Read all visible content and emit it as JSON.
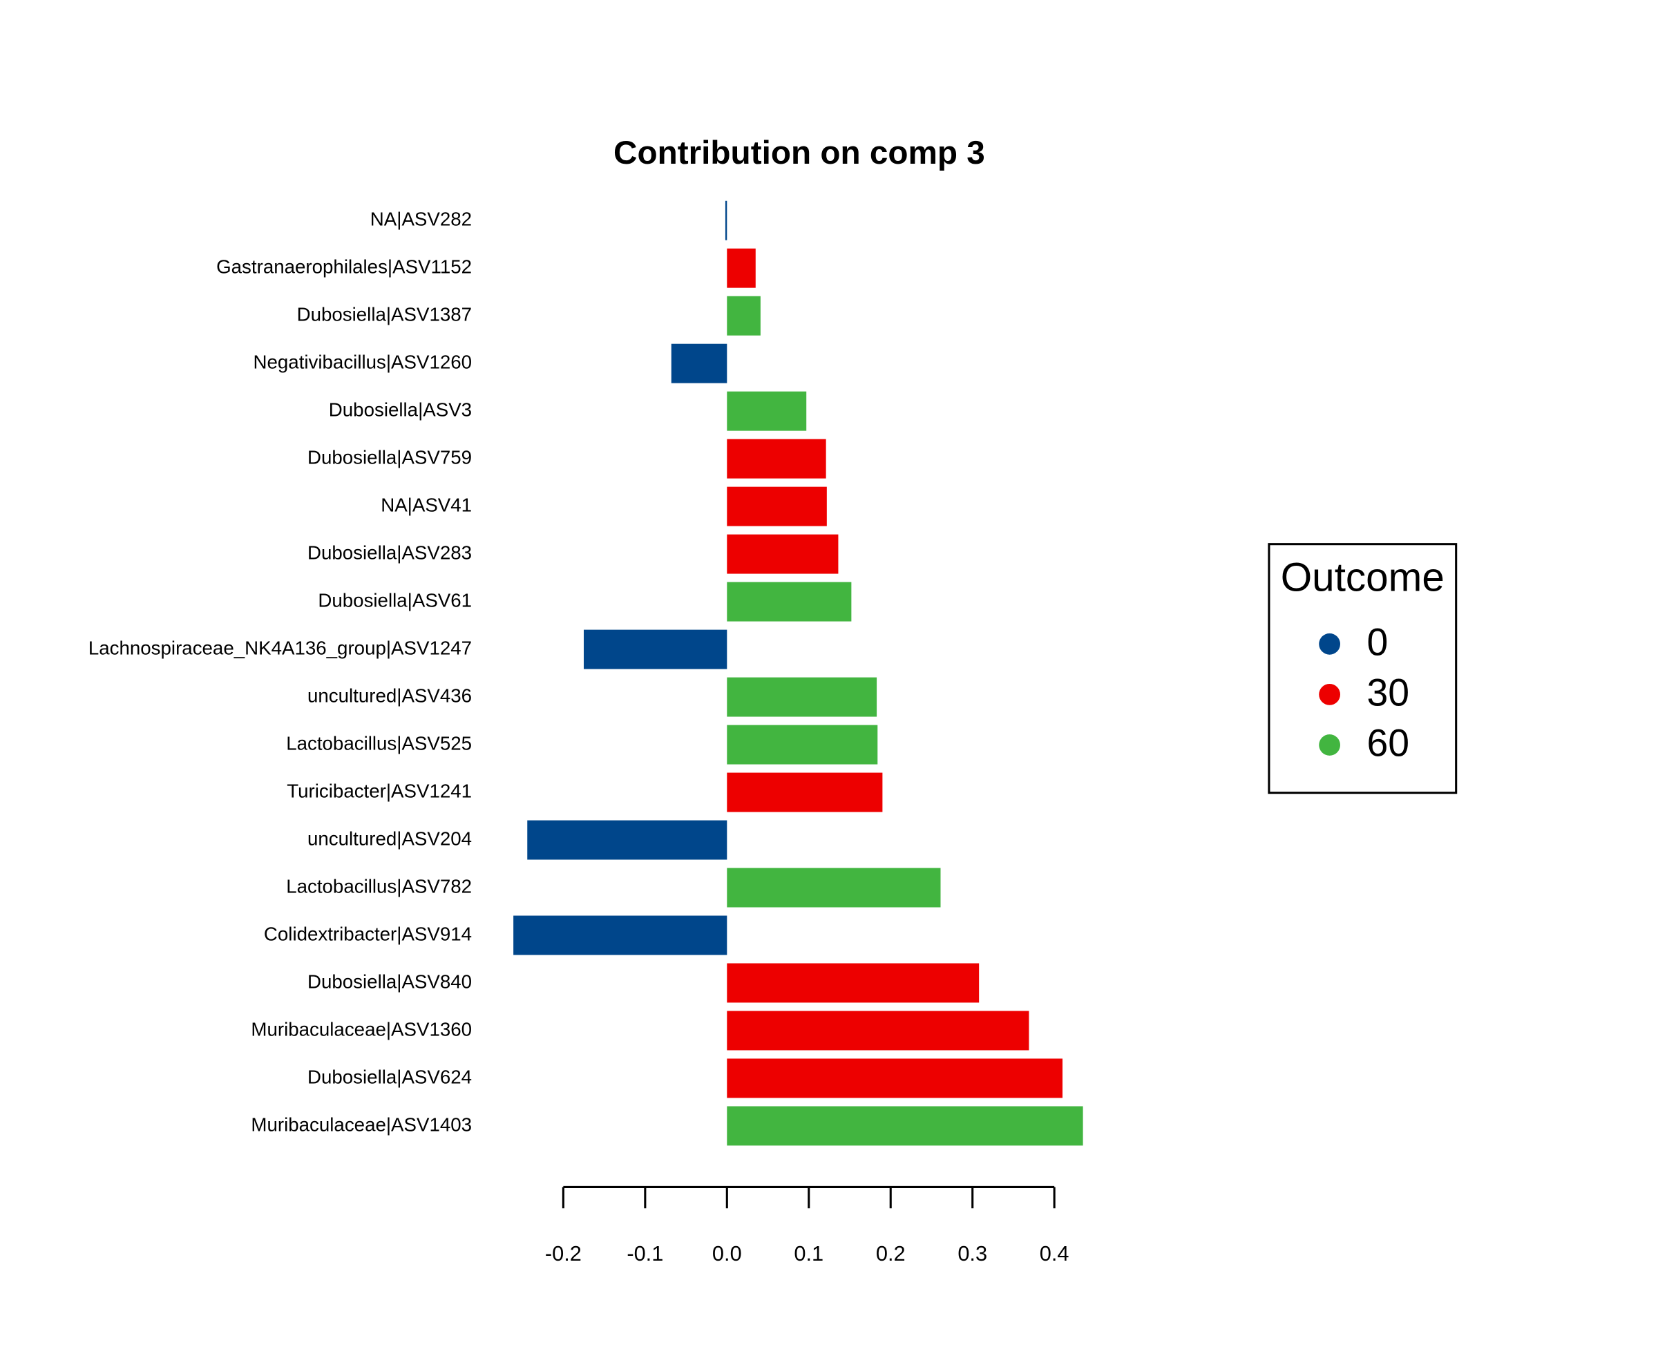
{
  "chart_data": {
    "type": "barh",
    "title": "Contribution on comp 3",
    "categories": [
      "NA|ASV282",
      "Gastranaerophilales|ASV1152",
      "Dubosiella|ASV1387",
      "Negativibacillus|ASV1260",
      "Dubosiella|ASV3",
      "Dubosiella|ASV759",
      "NA|ASV41",
      "Dubosiella|ASV283",
      "Dubosiella|ASV61",
      "Lachnospiraceae_NK4A136_group|ASV1247",
      "uncultured|ASV436",
      "Lactobacillus|ASV525",
      "Turicibacter|ASV1241",
      "uncultured|ASV204",
      "Lactobacillus|ASV782",
      "Colidextribacter|ASV914",
      "Dubosiella|ASV840",
      "Muribaculaceae|ASV1360",
      "Dubosiella|ASV624",
      "Muribaculaceae|ASV1403"
    ],
    "values": [
      -0.002,
      0.035,
      0.041,
      -0.068,
      0.097,
      0.121,
      0.122,
      0.136,
      0.152,
      -0.175,
      0.183,
      0.184,
      0.19,
      -0.244,
      0.261,
      -0.261,
      0.308,
      0.369,
      0.41,
      0.435
    ],
    "colors": [
      "#00468B",
      "#ED0000",
      "#42B540",
      "#00468B",
      "#42B540",
      "#ED0000",
      "#ED0000",
      "#ED0000",
      "#42B540",
      "#00468B",
      "#42B540",
      "#42B540",
      "#ED0000",
      "#00468B",
      "#42B540",
      "#00468B",
      "#ED0000",
      "#ED0000",
      "#ED0000",
      "#42B540"
    ],
    "xlim": [
      -0.27,
      0.44
    ],
    "xticks": [
      -0.2,
      -0.1,
      {
        "value": 0,
        "label": "0.0"
      },
      0.1,
      0.2,
      0.3,
      0.4
    ],
    "legend": {
      "title": "Outcome",
      "position": "right",
      "entries": [
        {
          "name": "0",
          "color": "#00468B"
        },
        {
          "name": "30",
          "color": "#ED0000"
        },
        {
          "name": "60",
          "color": "#42B540"
        }
      ]
    }
  }
}
